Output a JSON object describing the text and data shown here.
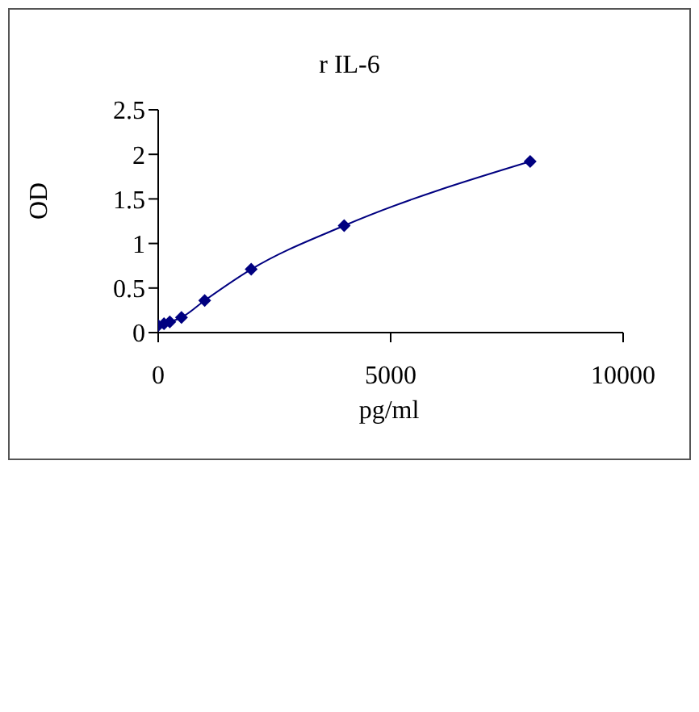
{
  "chart_data": {
    "type": "line",
    "title": "r IL-6",
    "xlabel": "pg/ml",
    "ylabel": "OD",
    "x": [
      0,
      125,
      250,
      500,
      1000,
      2000,
      4000,
      8000
    ],
    "series": [
      {
        "color": "#000080",
        "values": [
          0.08,
          0.1,
          0.12,
          0.17,
          0.36,
          0.71,
          1.2,
          1.92
        ]
      }
    ],
    "xlim": [
      0,
      10000
    ],
    "xticks": [
      0,
      5000,
      10000
    ],
    "ylim": [
      0,
      2.5
    ],
    "yticks": [
      0,
      0.5,
      1,
      1.5,
      2,
      2.5
    ],
    "grid": false,
    "legend": false,
    "marker": "diamond",
    "line_style": "solid"
  }
}
